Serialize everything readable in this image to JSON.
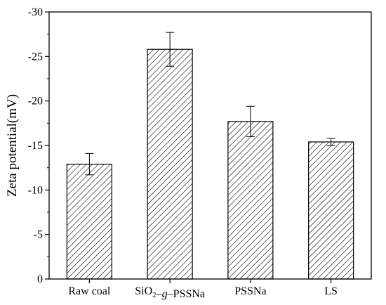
{
  "chart_data": {
    "type": "bar",
    "title": "",
    "xlabel": "",
    "ylabel": "Zeta potential(mV)",
    "ylim": [
      0,
      -30
    ],
    "yticks": [
      0,
      -5,
      -10,
      -15,
      -20,
      -25,
      -30
    ],
    "ytick_labels": [
      "0",
      "-5",
      "-10",
      "-15",
      "-20",
      "-25",
      "-30"
    ],
    "grid": false,
    "legend": "none",
    "bar_fill": "hatched diagonal",
    "bar_color": "#000000",
    "categories": [
      {
        "label": "Raw coal",
        "parts": [
          {
            "t": "Raw coal"
          }
        ]
      },
      {
        "label": "SiO2–g–PSSNa",
        "parts": [
          {
            "t": "SiO"
          },
          {
            "t": "2",
            "sub": true
          },
          {
            "t": "–"
          },
          {
            "t": "g",
            "italic": true
          },
          {
            "t": "–PSSNa"
          }
        ]
      },
      {
        "label": "PSSNa",
        "parts": [
          {
            "t": "PSSNa"
          }
        ]
      },
      {
        "label": "LS",
        "parts": [
          {
            "t": "LS"
          }
        ]
      }
    ],
    "values": [
      -12.9,
      -25.8,
      -17.7,
      -15.4
    ],
    "errors": [
      1.2,
      1.9,
      1.7,
      0.4
    ]
  }
}
